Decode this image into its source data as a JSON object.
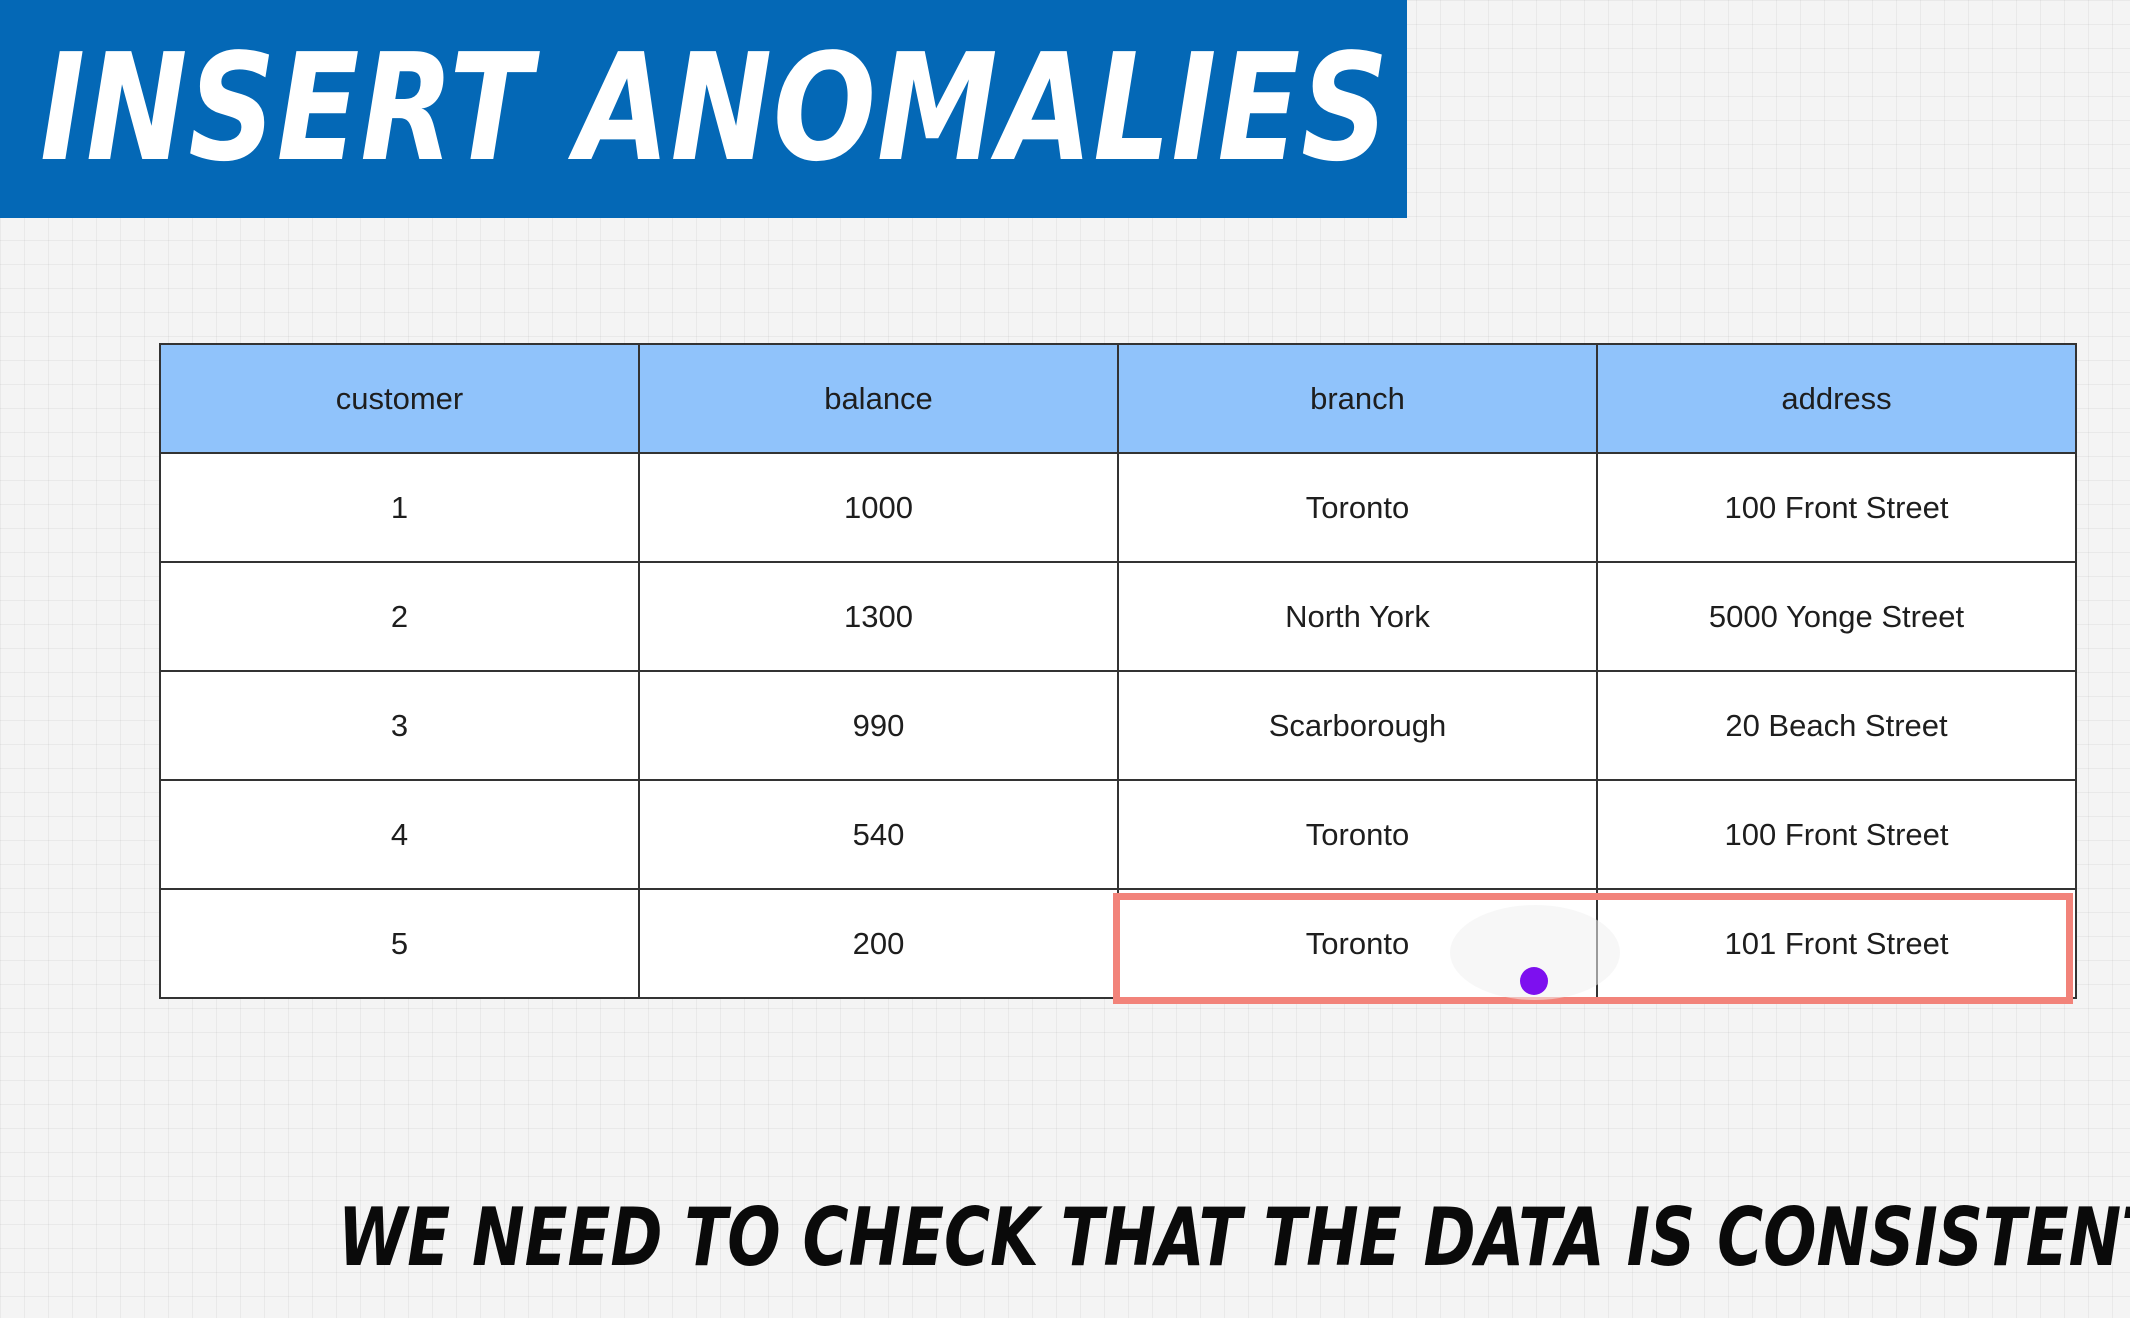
{
  "title": "INSERT ANOMALIES",
  "table": {
    "headers": [
      "customer",
      "balance",
      "branch",
      "address"
    ],
    "rows": [
      [
        "1",
        "1000",
        "Toronto",
        "100 Front Street"
      ],
      [
        "2",
        "1300",
        "North York",
        "5000 Yonge Street"
      ],
      [
        "3",
        "990",
        "Scarborough",
        "20 Beach Street"
      ],
      [
        "4",
        "540",
        "Toronto",
        "100 Front Street"
      ],
      [
        "5",
        "200",
        "Toronto",
        "101 Front Street"
      ]
    ]
  },
  "highlight": {
    "row": 5,
    "columns": [
      "branch",
      "address"
    ],
    "color": "#f2837a"
  },
  "cursor": {
    "color": "#7d10ef"
  },
  "caption": "WE NEED TO CHECK THAT THE DATA IS CONSISTENT",
  "colors": {
    "banner": "#0468b6",
    "header": "#90c3fb"
  }
}
